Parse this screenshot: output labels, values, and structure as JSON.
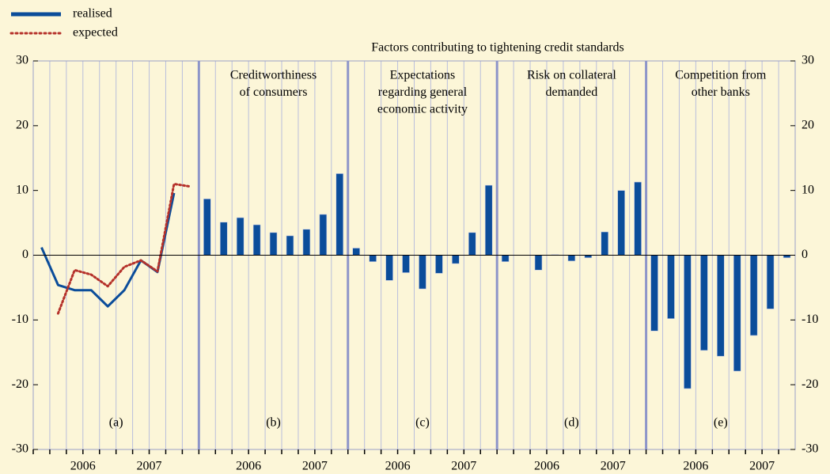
{
  "chart_data": {
    "type": "line-bar-panels",
    "title": "Factors contributing to tightening credit standards",
    "ylim": [
      -30,
      30
    ],
    "yticks": [
      -30,
      -20,
      -10,
      0,
      10,
      20,
      30
    ],
    "bar_color": "#0b4d9a",
    "panels": [
      {
        "label": "(a)",
        "categories": [
          null,
          null,
          null,
          "2006",
          null,
          null,
          null,
          "2007",
          null,
          null
        ],
        "series": [
          {
            "name": "realised",
            "color": "#0b4d9a",
            "style": "solid",
            "values": [
              1.2,
              -4.6,
              -5.4,
              -5.4,
              -7.9,
              -5.4,
              -0.8,
              -2.6,
              9.6,
              null
            ]
          },
          {
            "name": "expected",
            "color": "#b5312a",
            "style": "dotted",
            "values": [
              null,
              -9,
              -2.3,
              -3,
              -4.8,
              -1.8,
              -0.8,
              -2.5,
              11,
              10.6
            ]
          }
        ]
      },
      {
        "label": "(b)",
        "text": [
          "Creditworthiness",
          "of consumers"
        ],
        "categories": [
          null,
          null,
          null,
          "2006",
          null,
          null,
          null,
          "2007",
          null
        ],
        "values": [
          8.7,
          5.1,
          5.8,
          4.7,
          3.5,
          3.0,
          4.0,
          6.3,
          12.6
        ]
      },
      {
        "label": "(c)",
        "text": [
          "Expectations",
          "regarding general",
          "economic activity"
        ],
        "categories": [
          null,
          null,
          null,
          "2006",
          null,
          null,
          null,
          "2007",
          null
        ],
        "values": [
          1.1,
          -1.0,
          -3.9,
          -2.7,
          -5.2,
          -2.8,
          -1.3,
          3.5,
          10.8
        ]
      },
      {
        "label": "(d)",
        "text": [
          "Risk on collateral",
          "demanded"
        ],
        "categories": [
          null,
          null,
          null,
          "2006",
          null,
          null,
          null,
          "2007",
          null
        ],
        "values": [
          -1.0,
          0,
          -2.3,
          0.1,
          -0.9,
          -0.4,
          3.6,
          10.0,
          11.3
        ]
      },
      {
        "label": "(e)",
        "text": [
          "Competition from",
          "other banks"
        ],
        "categories": [
          null,
          null,
          null,
          "2006",
          null,
          null,
          null,
          "2007",
          null
        ],
        "values": [
          -11.7,
          -9.8,
          -20.6,
          -14.7,
          -15.6,
          -17.9,
          -12.4,
          -8.3,
          -0.4
        ]
      }
    ]
  }
}
